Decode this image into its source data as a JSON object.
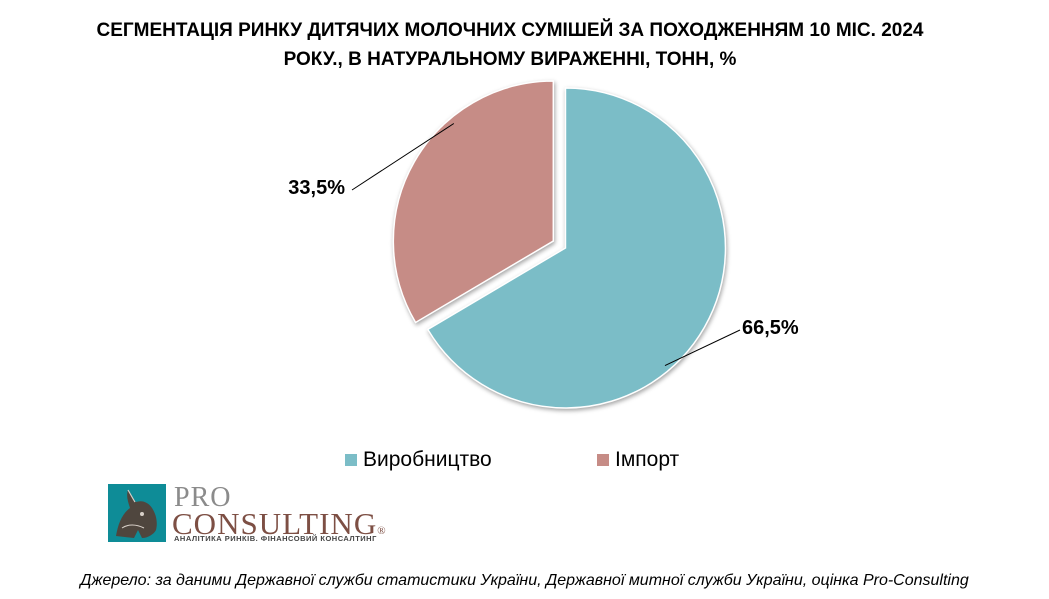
{
  "title": {
    "line1": "СЕГМЕНТАЦІЯ РИНКУ ДИТЯЧИХ МОЛОЧНИХ СУМІШЕЙ ЗА ПОХОДЖЕННЯМ 10 МІС. 2024",
    "line2": "РОКУ., В НАТУРАЛЬНОМУ ВИРАЖЕННІ, ТОНН, %"
  },
  "chart_data": {
    "type": "pie",
    "title": "СЕГМЕНТАЦІЯ РИНКУ ДИТЯЧИХ МОЛОЧНИХ СУМІШЕЙ ЗА ПОХОДЖЕННЯМ 10 МІС. 2024 РОКУ., В НАТУРАЛЬНОМУ ВИРАЖЕННІ, ТОНН, %",
    "slices": [
      {
        "name": "Виробництво",
        "value": 66.5,
        "label": "66,5%",
        "color": "#7bbdc7"
      },
      {
        "name": "Імпорт",
        "value": 33.5,
        "label": "33,5%",
        "color": "#c68c86"
      }
    ],
    "legend_position": "bottom",
    "exploded": true
  },
  "logo": {
    "pro": "PRO",
    "consulting": "CONSULTING",
    "registered": "®",
    "tagline": "АНАЛІТИКА РИНКІВ. ФІНАНСОВИЙ КОНСАЛТИНГ"
  },
  "source": "Джерело: за даними Державної служби статистики України, Державної митної служби України, оцінка Pro-Consulting"
}
